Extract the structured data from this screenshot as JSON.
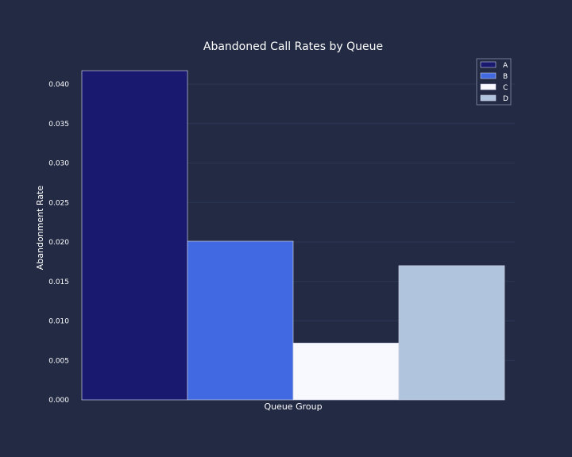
{
  "colors": {
    "background": "#222a44",
    "grid": "#2d3654",
    "text": "#ffffff",
    "bar_edge": "#c8cce0"
  },
  "chart_data": {
    "type": "bar",
    "title": "Abandoned Call Rates by Queue",
    "xlabel": "Queue Group",
    "ylabel": "Abandonment Rate",
    "ylim": [
      0,
      0.042
    ],
    "y_ticks": [
      "0.000",
      "0.005",
      "0.010",
      "0.015",
      "0.020",
      "0.025",
      "0.030",
      "0.035",
      "0.040"
    ],
    "y_tick_values": [
      0,
      0.005,
      0.01,
      0.015,
      0.02,
      0.025,
      0.03,
      0.035,
      0.04
    ],
    "grid": true,
    "legend_position": "top-right",
    "series": [
      {
        "name": "A",
        "value": 0.0417,
        "color": "#191970"
      },
      {
        "name": "B",
        "value": 0.0201,
        "color": "#4169e1"
      },
      {
        "name": "C",
        "value": 0.0072,
        "color": "#f8f8ff"
      },
      {
        "name": "D",
        "value": 0.017,
        "color": "#b0c4de"
      }
    ]
  }
}
